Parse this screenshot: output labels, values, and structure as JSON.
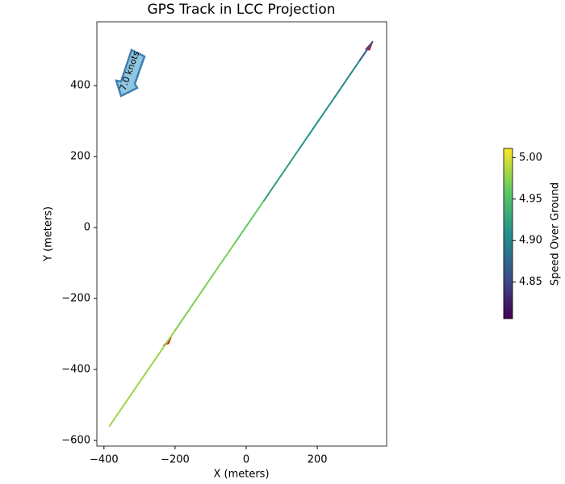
{
  "chart_data": {
    "type": "colored_line",
    "title": "GPS Track in LCC Projection",
    "xlabel": "X (meters)",
    "ylabel": "Y (meters)",
    "x": [
      -384,
      -300,
      -200,
      -100,
      -30,
      50,
      150,
      250,
      320,
      355
    ],
    "y": [
      -559,
      -436,
      -290,
      -143,
      -41,
      76,
      223,
      369,
      472,
      523
    ],
    "speed": [
      4.98,
      4.98,
      4.97,
      4.97,
      4.96,
      4.92,
      4.91,
      4.9,
      4.86,
      4.84
    ],
    "colormap": "viridis",
    "xlim": [
      -420,
      395
    ],
    "ylim": [
      -616,
      580
    ],
    "xticks": [
      {
        "value": -400,
        "label": "−400"
      },
      {
        "value": -200,
        "label": "−200"
      },
      0,
      200
    ],
    "yticks": [
      {
        "value": -600,
        "label": "−600"
      },
      {
        "value": -400,
        "label": "−400"
      },
      {
        "value": -200,
        "label": "−200"
      },
      0,
      200,
      400
    ],
    "colorbar_label": "Speed Over Ground",
    "clim": [
      4.806,
      5.011
    ],
    "cticks": [
      4.85,
      {
        "value": 4.9,
        "label": "4.90"
      },
      4.95,
      {
        "value": 5.0,
        "label": "5.00"
      }
    ],
    "annotation": "7.0 knots"
  }
}
